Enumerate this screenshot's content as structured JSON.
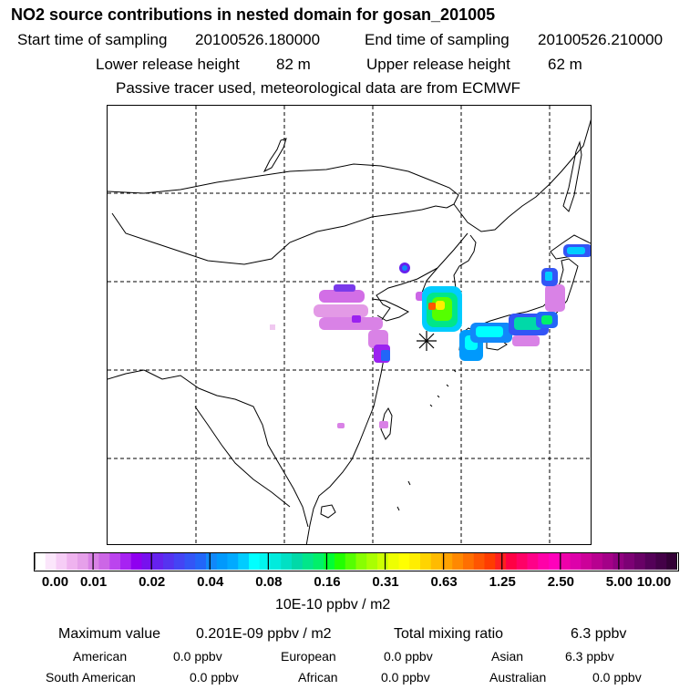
{
  "header": {
    "title": "NO2 source contributions in nested domain for gosan_201005",
    "start_label": "Start time of sampling",
    "start_value": "20100526.180000",
    "end_label": "End time of sampling",
    "end_value": "20100526.210000",
    "lower_label": "Lower release height",
    "lower_value": "82 m",
    "upper_label": "Upper release height",
    "upper_value": "62 m",
    "tracer_note": "Passive tracer used, meteorological data are from ECMWF"
  },
  "legend": {
    "ticks": [
      "0.00",
      "0.01",
      "0.02",
      "0.04",
      "0.08",
      "0.16",
      "0.31",
      "0.63",
      "1.25",
      "2.50",
      "5.00",
      "10.00"
    ],
    "unit": "10E-10 ppbv / m2",
    "colors": [
      "#ffffff",
      "#fbe6fb",
      "#f6cdf6",
      "#efb3ef",
      "#e6a0ea",
      "#d982e6",
      "#cc66e6",
      "#bb44ee",
      "#a722f2",
      "#8f00f0",
      "#7711ee",
      "#6622ee",
      "#5533f0",
      "#4444f4",
      "#3355f6",
      "#2266f8",
      "#1188fa",
      "#0099fc",
      "#00aaff",
      "#00ccff",
      "#00ffff",
      "#00f5ee",
      "#00ebdd",
      "#00e0c4",
      "#00d9a8",
      "#00e68a",
      "#00f06a",
      "#00ff33",
      "#22ff00",
      "#55ff00",
      "#88ff00",
      "#aaff00",
      "#ccff00",
      "#eeff00",
      "#ffff00",
      "#ffee00",
      "#ffd400",
      "#ffbb00",
      "#ffa200",
      "#ff8800",
      "#ff6f00",
      "#ff5500",
      "#ff3c00",
      "#ff2020",
      "#ff0044",
      "#ff0066",
      "#ff0088",
      "#ff00a8",
      "#ff00bb",
      "#ee00aa",
      "#dd00aa",
      "#cc0099",
      "#b80090",
      "#a40088",
      "#900080",
      "#7c0074",
      "#680066",
      "#540058",
      "#440048",
      "#330036"
    ]
  },
  "summary": {
    "max_label": "Maximum value",
    "max_value": "0.201E-09 ppbv / m2",
    "total_label": "Total mixing ratio",
    "total_value": "6.3 ppbv",
    "regions": [
      {
        "name": "American",
        "value": "0.0 ppbv"
      },
      {
        "name": "European",
        "value": "0.0 ppbv"
      },
      {
        "name": "Asian",
        "value": "6.3 ppbv"
      },
      {
        "name": "South American",
        "value": "0.0 ppbv"
      },
      {
        "name": "African",
        "value": "0.0 ppbv"
      },
      {
        "name": "Australian",
        "value": "0.0 ppbv"
      }
    ]
  },
  "map": {
    "station_marker": "asterisk",
    "color_land_line": "#000000",
    "color_grid": "#000000"
  }
}
